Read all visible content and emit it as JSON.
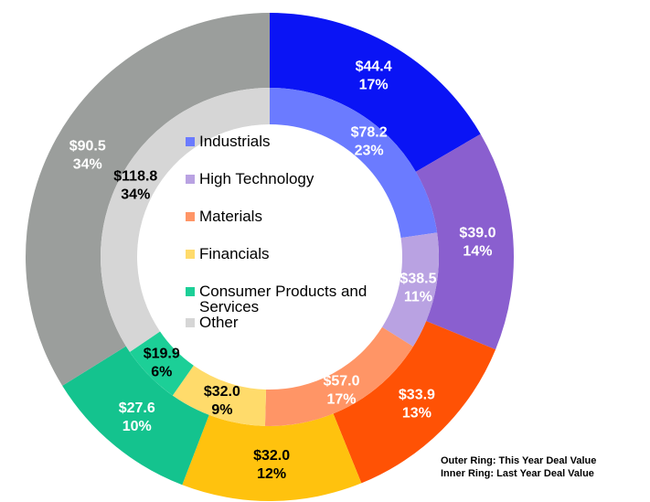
{
  "chart_data": {
    "type": "donut",
    "categories": [
      "Industrials",
      "High Technology",
      "Materials",
      "Financials",
      "Consumer Products and Services",
      "Other"
    ],
    "series": [
      {
        "values": [
          44.4,
          39.0,
          33.9,
          32.0,
          27.6,
          90.5
        ],
        "value_labels": [
          "$44.4",
          "$39.0",
          "$33.9",
          "$32.0",
          "$27.6",
          "$90.5"
        ],
        "percents": [
          17,
          14,
          13,
          12,
          10,
          34
        ],
        "percent_labels": [
          "17%",
          "14%",
          "13%",
          "12%",
          "10%",
          "34%"
        ],
        "colors": [
          "#0a14f5",
          "#8a5fcf",
          "#ff5205",
          "#ffc20e",
          "#14c38e",
          "#9b9e9c"
        ],
        "label_colors": [
          "#ffffff",
          "#ffffff",
          "#ffffff",
          "#000000",
          "#ffffff",
          "#ffffff"
        ]
      },
      {
        "values": [
          78.2,
          38.5,
          57.0,
          32.0,
          19.9,
          118.8
        ],
        "value_labels": [
          "$78.2",
          "$38.5",
          "$57.0",
          "$32.0",
          "$19.9",
          "$118.8"
        ],
        "percents": [
          23,
          11,
          17,
          9,
          6,
          34
        ],
        "percent_labels": [
          "23%",
          "11%",
          "17%",
          "9%",
          "6%",
          "34%"
        ],
        "colors": [
          "#6b7bff",
          "#b9a2e2",
          "#ff9566",
          "#ffdb6b",
          "#1ccf97",
          "#d6d6d6"
        ],
        "label_colors": [
          "#ffffff",
          "#ffffff",
          "#ffffff",
          "#000000",
          "#000000",
          "#000000"
        ]
      }
    ],
    "legend_colors": [
      "#6b7bff",
      "#b9a2e2",
      "#ff9566",
      "#ffdb6b",
      "#1ccf97",
      "#d6d6d6"
    ],
    "notes": [
      "Outer Ring: This Year Deal Value",
      "Inner Ring: Last Year Deal Value"
    ]
  }
}
